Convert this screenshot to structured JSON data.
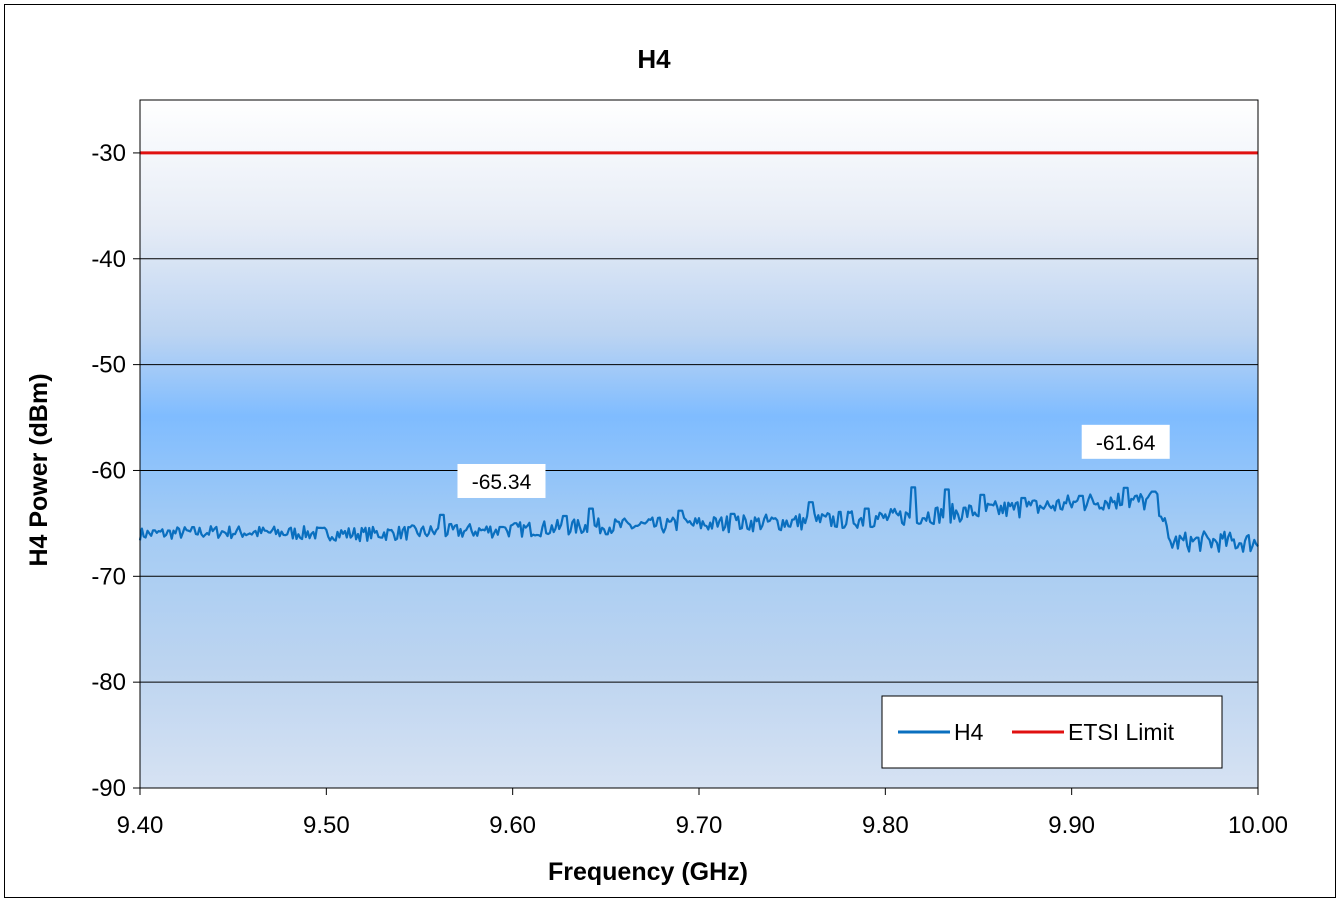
{
  "chart_data": {
    "type": "line",
    "title": "H4",
    "xlabel": "Frequency (GHz)",
    "ylabel": "H4 Power (dBm)",
    "xlim": [
      9.4,
      10.0
    ],
    "ylim": [
      -90,
      -25
    ],
    "x_ticks": [
      "9.40",
      "9.50",
      "9.60",
      "9.70",
      "9.80",
      "9.90",
      "10.00"
    ],
    "y_ticks": [
      "-30",
      "-40",
      "-50",
      "-60",
      "-70",
      "-80",
      "-90"
    ],
    "grid": true,
    "legend": {
      "placement": "bottom-right"
    },
    "colors": {
      "h4": "#0a6fbf",
      "limit": "#e01010",
      "grid": "#000000"
    },
    "series": [
      {
        "name": "H4",
        "anchors": [
          [
            9.4,
            -66.0
          ],
          [
            9.44,
            -65.8
          ],
          [
            9.48,
            -65.9
          ],
          [
            9.52,
            -66.0
          ],
          [
            9.56,
            -65.8
          ],
          [
            9.6,
            -65.6
          ],
          [
            9.64,
            -65.3
          ],
          [
            9.68,
            -65.2
          ],
          [
            9.72,
            -65.0
          ],
          [
            9.76,
            -64.8
          ],
          [
            9.8,
            -64.5
          ],
          [
            9.84,
            -64.0
          ],
          [
            9.88,
            -63.5
          ],
          [
            9.92,
            -62.8
          ],
          [
            9.945,
            -63.0
          ],
          [
            9.948,
            -63.6
          ],
          [
            9.952,
            -66.8
          ],
          [
            9.97,
            -66.7
          ],
          [
            10.0,
            -66.8
          ]
        ],
        "noise_amplitude": 0.6,
        "noise_amplitude_end": 1.0,
        "spikes": [
          [
            9.562,
            -64.2
          ],
          [
            9.594,
            -65.34
          ],
          [
            9.628,
            -64.3
          ],
          [
            9.642,
            -63.6
          ],
          [
            9.69,
            -63.8
          ],
          [
            9.718,
            -64.1
          ],
          [
            9.76,
            -63.0
          ],
          [
            9.79,
            -63.6
          ],
          [
            9.815,
            -61.6
          ],
          [
            9.833,
            -61.8
          ],
          [
            9.852,
            -62.3
          ],
          [
            9.874,
            -62.6
          ],
          [
            9.905,
            -62.4
          ],
          [
            9.929,
            -61.64
          ],
          [
            9.944,
            -62.0
          ]
        ]
      },
      {
        "name": "ETSI Limit",
        "x": [
          9.4,
          10.0
        ],
        "y": [
          -30,
          -30
        ]
      }
    ],
    "annotations": [
      {
        "text": "-65.34",
        "x": 9.594,
        "y": -65.34
      },
      {
        "text": "-61.64",
        "x": 9.929,
        "y": -61.64
      }
    ]
  }
}
